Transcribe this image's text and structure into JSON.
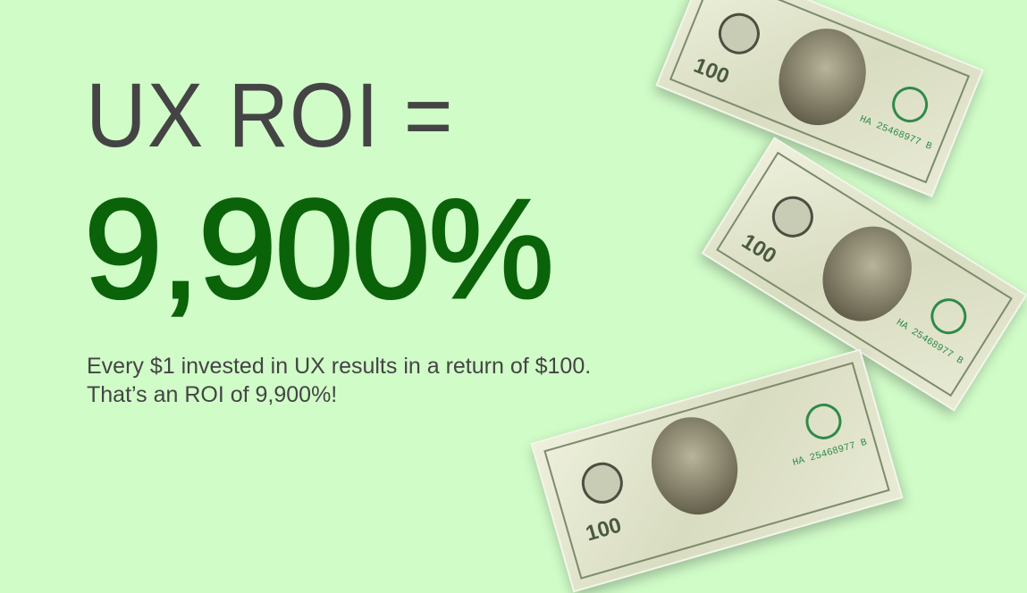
{
  "headline": "UX ROI =",
  "value": "9,900%",
  "subtitle_line1": "Every $1 invested in UX results in a return of $100.",
  "subtitle_line2": "That’s an ROI of 9,900%!",
  "bills": [
    {
      "denomination": "100",
      "serial": "HA 25468977 B"
    },
    {
      "denomination": "100",
      "serial": "HA 25468977 B"
    },
    {
      "denomination": "100",
      "serial": "HA 25468977 B"
    }
  ],
  "colors": {
    "background": "#d0fcc8",
    "accent": "#0a6308",
    "text": "#444444"
  }
}
